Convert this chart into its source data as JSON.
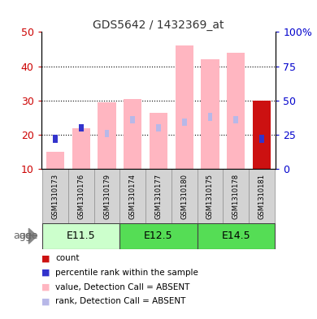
{
  "title": "GDS5642 / 1432369_at",
  "samples": [
    "GSM1310173",
    "GSM1310176",
    "GSM1310179",
    "GSM1310174",
    "GSM1310177",
    "GSM1310180",
    "GSM1310175",
    "GSM1310178",
    "GSM1310181"
  ],
  "value_absent": [
    15.0,
    22.0,
    29.5,
    30.5,
    26.5,
    46.0,
    42.0,
    44.0,
    null
  ],
  "rank_absent_pct": [
    null,
    null,
    26.0,
    36.0,
    30.0,
    34.0,
    38.0,
    36.0,
    null
  ],
  "count_value": [
    null,
    null,
    null,
    null,
    null,
    null,
    null,
    null,
    30.0
  ],
  "percentile_rank_pct": [
    22.0,
    30.0,
    null,
    null,
    null,
    null,
    null,
    null,
    22.0
  ],
  "ylim_left": [
    10,
    50
  ],
  "ylim_right": [
    0,
    100
  ],
  "yticks_left": [
    10,
    20,
    30,
    40,
    50
  ],
  "yticks_right": [
    0,
    25,
    50,
    75,
    100
  ],
  "ytick_labels_right": [
    "0",
    "25",
    "50",
    "75",
    "100%"
  ],
  "color_value_absent": "#FFB6C1",
  "color_rank_absent": "#B8B8E8",
  "color_count": "#CC1111",
  "color_percentile": "#3333CC",
  "bar_width": 0.7,
  "narrow_bar_width": 0.18,
  "bg_color": "#FFFFFF",
  "plot_bg": "#FFFFFF",
  "grid_color": "#000000",
  "tick_color_left": "#CC0000",
  "tick_color_right": "#0000CC",
  "sample_box_color": "#D3D3D3",
  "sample_box_edge": "#999999",
  "age_groups": [
    {
      "label": "E11.5",
      "start": 0,
      "end": 2,
      "color": "#CCFFCC"
    },
    {
      "label": "E12.5",
      "start": 3,
      "end": 5,
      "color": "#55DD55"
    },
    {
      "label": "E14.5",
      "start": 6,
      "end": 8,
      "color": "#55DD55"
    }
  ],
  "legend_items": [
    {
      "color": "#CC1111",
      "label": "count"
    },
    {
      "color": "#3333CC",
      "label": "percentile rank within the sample"
    },
    {
      "color": "#FFB6C1",
      "label": "value, Detection Call = ABSENT"
    },
    {
      "color": "#B8B8E8",
      "label": "rank, Detection Call = ABSENT"
    }
  ]
}
